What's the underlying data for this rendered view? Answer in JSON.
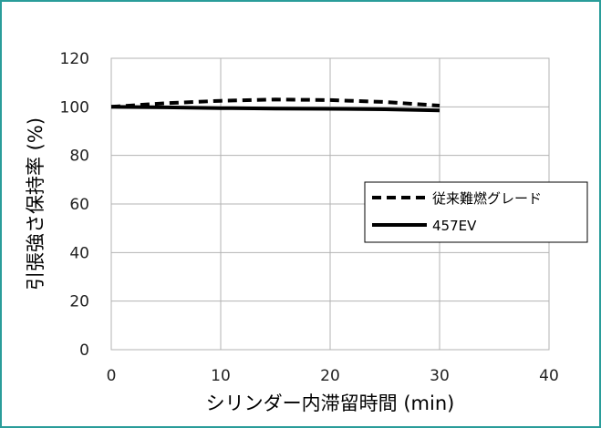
{
  "chart_data": {
    "type": "line",
    "title": "",
    "xlabel": "シリンダー内滞留時間 (min)",
    "ylabel": "引張強さ保持率 (%)",
    "xlim": [
      0,
      40
    ],
    "ylim": [
      0,
      120
    ],
    "x_ticks": [
      0,
      10,
      20,
      30,
      40
    ],
    "y_ticks": [
      0,
      20,
      40,
      60,
      80,
      100,
      120
    ],
    "x_tick_labels": [
      "0",
      "10",
      "20",
      "30",
      "40"
    ],
    "y_tick_labels": [
      "0",
      "20",
      "40",
      "60",
      "80",
      "100",
      "120"
    ],
    "grid": true,
    "legend_position": "right",
    "series": [
      {
        "name": "従来難燃グレード",
        "style": "dashed",
        "color": "#000000",
        "x": [
          0,
          5,
          10,
          15,
          20,
          25,
          30
        ],
        "y": [
          100,
          101.5,
          102.5,
          103,
          102.8,
          102,
          100.5
        ]
      },
      {
        "name": "457EV",
        "style": "solid",
        "color": "#000000",
        "x": [
          0,
          5,
          10,
          15,
          20,
          25,
          30
        ],
        "y": [
          100,
          99.8,
          99.5,
          99.3,
          99.2,
          99,
          98.5
        ]
      }
    ]
  }
}
